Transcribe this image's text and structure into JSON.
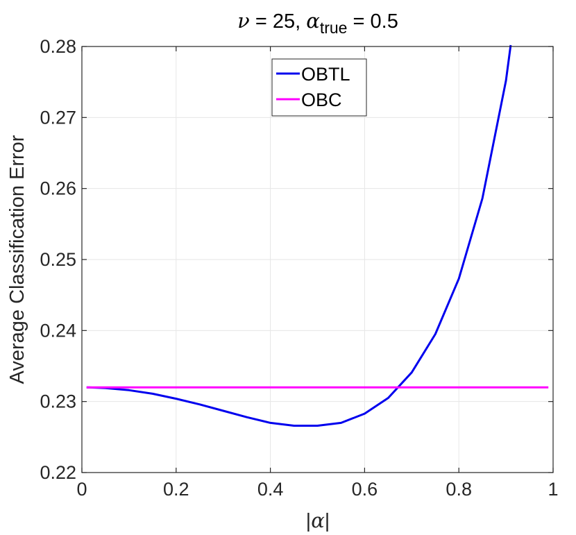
{
  "chart_data": {
    "type": "line",
    "title": {
      "nu_symbol": "ν",
      "eq1": " = 25, ",
      "alpha_symbol": "α",
      "alpha_sub": "true",
      "eq2": " = 0.5"
    },
    "xlabel": {
      "bar_left": "|",
      "symbol": "α",
      "bar_right": "|"
    },
    "ylabel": "Average Classification Error",
    "xlim": [
      0,
      1
    ],
    "ylim": [
      0.22,
      0.28
    ],
    "xticks": [
      0,
      0.2,
      0.4,
      0.6,
      0.8,
      1
    ],
    "xtick_labels": [
      "0",
      "0.2",
      "0.4",
      "0.6",
      "0.8",
      "1"
    ],
    "yticks": [
      0.22,
      0.23,
      0.24,
      0.25,
      0.26,
      0.27,
      0.28
    ],
    "ytick_labels": [
      "0.22",
      "0.23",
      "0.24",
      "0.25",
      "0.26",
      "0.27",
      "0.28"
    ],
    "grid": true,
    "legend_position": "top-center",
    "series": [
      {
        "name": "OBTL",
        "color": "#0000ee",
        "x": [
          0.01,
          0.05,
          0.1,
          0.15,
          0.2,
          0.25,
          0.3,
          0.35,
          0.4,
          0.45,
          0.5,
          0.55,
          0.6,
          0.65,
          0.7,
          0.75,
          0.8,
          0.85,
          0.9,
          0.91
        ],
        "y": [
          0.232,
          0.2319,
          0.2316,
          0.2311,
          0.2304,
          0.2296,
          0.2287,
          0.2278,
          0.227,
          0.2266,
          0.2266,
          0.227,
          0.2283,
          0.2305,
          0.2341,
          0.2395,
          0.2473,
          0.2586,
          0.2752,
          0.2802
        ]
      },
      {
        "name": "OBC",
        "color": "#ff00ff",
        "x": [
          0.01,
          0.99
        ],
        "y": [
          0.232,
          0.232
        ]
      }
    ]
  }
}
